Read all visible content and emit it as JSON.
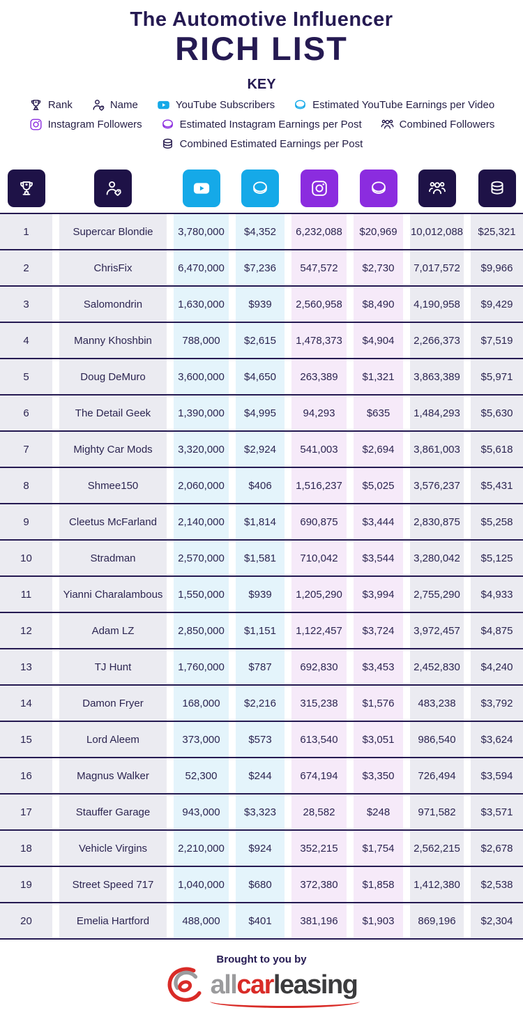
{
  "header": {
    "title_line1": "The Automotive Influencer",
    "title_line2": "RICH LIST"
  },
  "key": {
    "title": "KEY",
    "rows": [
      [
        {
          "icon": "trophy-icon",
          "type": "trophy",
          "color": "navy",
          "label": "Rank"
        },
        {
          "icon": "person-icon",
          "type": "person",
          "color": "navy",
          "label": "Name"
        },
        {
          "icon": "youtube-icon",
          "type": "youtube",
          "color": "cyan",
          "label": "YouTube Subscribers"
        },
        {
          "icon": "coin-icon",
          "type": "coin",
          "color": "cyan",
          "label": "Estimated YouTube Earnings per Video"
        }
      ],
      [
        {
          "icon": "instagram-icon",
          "type": "instagram",
          "color": "purple",
          "label": "Instagram Followers"
        },
        {
          "icon": "coin-icon",
          "type": "coin",
          "color": "purple",
          "label": "Estimated Instagram Earnings per Post"
        },
        {
          "icon": "people-icon",
          "type": "people",
          "color": "navy",
          "label": "Combined Followers"
        }
      ],
      [
        {
          "icon": "coins-icon",
          "type": "coins",
          "color": "navy",
          "label": "Combined Estimated Earnings per Post"
        }
      ]
    ]
  },
  "table": {
    "columns": [
      {
        "field": "rank",
        "icon": "trophy-icon",
        "type": "trophy",
        "tile": "navy",
        "cell_bg": "gray"
      },
      {
        "field": "name",
        "icon": "person-icon",
        "type": "person",
        "tile": "navy",
        "cell_bg": "gray"
      },
      {
        "field": "youtube-subscribers",
        "icon": "youtube-icon",
        "type": "youtube",
        "tile": "cyan",
        "cell_bg": "cyan"
      },
      {
        "field": "youtube-earnings-per-video",
        "icon": "coin-icon",
        "type": "coin",
        "tile": "cyan",
        "cell_bg": "cyan"
      },
      {
        "field": "instagram-followers",
        "icon": "instagram-icon",
        "type": "instagram",
        "tile": "purple",
        "cell_bg": "pink"
      },
      {
        "field": "instagram-earnings-per-post",
        "icon": "coin-icon",
        "type": "coin",
        "tile": "purple",
        "cell_bg": "pink"
      },
      {
        "field": "combined-followers",
        "icon": "people-icon",
        "type": "people",
        "tile": "navy",
        "cell_bg": "gray"
      },
      {
        "field": "combined-earnings-per-post",
        "icon": "coins-icon",
        "type": "coins",
        "tile": "navy",
        "cell_bg": "gray"
      }
    ]
  },
  "chart_data": {
    "type": "table",
    "title": "The Automotive Influencer Rich List",
    "columns": [
      "Rank",
      "Name",
      "YouTube Subscribers",
      "Estimated YouTube Earnings per Video",
      "Instagram Followers",
      "Estimated Instagram Earnings per Post",
      "Combined Followers",
      "Combined Estimated Earnings per Post"
    ],
    "rows": [
      [
        "1",
        "Supercar Blondie",
        "3,780,000",
        "$4,352",
        "6,232,088",
        "$20,969",
        "10,012,088",
        "$25,321"
      ],
      [
        "2",
        "ChrisFix",
        "6,470,000",
        "$7,236",
        "547,572",
        "$2,730",
        "7,017,572",
        "$9,966"
      ],
      [
        "3",
        "Salomondrin",
        "1,630,000",
        "$939",
        "2,560,958",
        "$8,490",
        "4,190,958",
        "$9,429"
      ],
      [
        "4",
        "Manny Khoshbin",
        "788,000",
        "$2,615",
        "1,478,373",
        "$4,904",
        "2,266,373",
        "$7,519"
      ],
      [
        "5",
        "Doug DeMuro",
        "3,600,000",
        "$4,650",
        "263,389",
        "$1,321",
        "3,863,389",
        "$5,971"
      ],
      [
        "6",
        "The Detail Geek",
        "1,390,000",
        "$4,995",
        "94,293",
        "$635",
        "1,484,293",
        "$5,630"
      ],
      [
        "7",
        "Mighty Car Mods",
        "3,320,000",
        "$2,924",
        "541,003",
        "$2,694",
        "3,861,003",
        "$5,618"
      ],
      [
        "8",
        "Shmee150",
        "2,060,000",
        "$406",
        "1,516,237",
        "$5,025",
        "3,576,237",
        "$5,431"
      ],
      [
        "9",
        "Cleetus McFarland",
        "2,140,000",
        "$1,814",
        "690,875",
        "$3,444",
        "2,830,875",
        "$5,258"
      ],
      [
        "10",
        "Stradman",
        "2,570,000",
        "$1,581",
        "710,042",
        "$3,544",
        "3,280,042",
        "$5,125"
      ],
      [
        "11",
        "Yianni Charalambous",
        "1,550,000",
        "$939",
        "1,205,290",
        "$3,994",
        "2,755,290",
        "$4,933"
      ],
      [
        "12",
        "Adam LZ",
        "2,850,000",
        "$1,151",
        "1,122,457",
        "$3,724",
        "3,972,457",
        "$4,875"
      ],
      [
        "13",
        "TJ Hunt",
        "1,760,000",
        "$787",
        "692,830",
        "$3,453",
        "2,452,830",
        "$4,240"
      ],
      [
        "14",
        "Damon Fryer",
        "168,000",
        "$2,216",
        "315,238",
        "$1,576",
        "483,238",
        "$3,792"
      ],
      [
        "15",
        "Lord Aleem",
        "373,000",
        "$573",
        "613,540",
        "$3,051",
        "986,540",
        "$3,624"
      ],
      [
        "16",
        "Magnus Walker",
        "52,300",
        "$244",
        "674,194",
        "$3,350",
        "726,494",
        "$3,594"
      ],
      [
        "17",
        "Stauffer Garage",
        "943,000",
        "$3,323",
        "28,582",
        "$248",
        "971,582",
        "$3,571"
      ],
      [
        "18",
        "Vehicle Virgins",
        "2,210,000",
        "$924",
        "352,215",
        "$1,754",
        "2,562,215",
        "$2,678"
      ],
      [
        "19",
        "Street Speed 717",
        "1,040,000",
        "$680",
        "372,380",
        "$1,858",
        "1,412,380",
        "$2,538"
      ],
      [
        "20",
        "Emelia Hartford",
        "488,000",
        "$401",
        "381,196",
        "$1,903",
        "869,196",
        "$2,304"
      ]
    ]
  },
  "footer": {
    "brought": "Brought to you by",
    "logo": {
      "all": "all",
      "car": "car",
      "leasing": "leasing"
    }
  },
  "colors": {
    "navy": "#1e1247",
    "navy_text": "#251a52",
    "cyan": "#15a9e8",
    "purple": "#8b2cdf",
    "cell_gray": "#ebebf1",
    "cell_cyan": "#e4f4fb",
    "cell_pink": "#f6eaf9",
    "row_line": "#251a52",
    "text": "#2c2551",
    "logo_red": "#d92b27",
    "logo_gray": "#9b9b9d",
    "logo_dark": "#3b3b3d"
  }
}
